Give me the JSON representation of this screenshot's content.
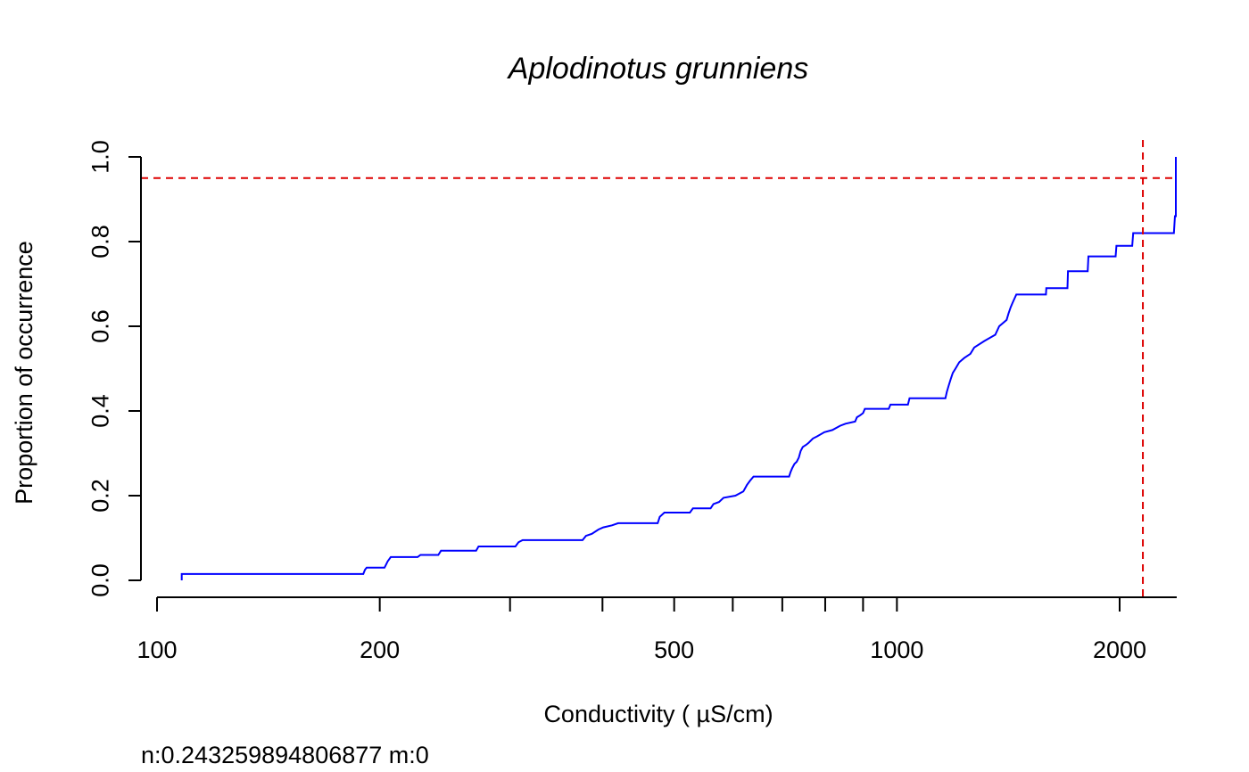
{
  "chart_data": {
    "type": "line",
    "title": "Aplodinotus grunniens",
    "xlabel": "Conductivity ( µS/cm)",
    "ylabel": "Proportion of occurrence",
    "x_scale": "log",
    "xlim": [
      96,
      2600
    ],
    "ylim": [
      -0.04,
      1.04
    ],
    "x_ticks": [
      100,
      200,
      300,
      400,
      500,
      600,
      700,
      800,
      900,
      1000,
      2000
    ],
    "x_tick_labels": [
      {
        "value": 100,
        "label": "100"
      },
      {
        "value": 200,
        "label": "200"
      },
      {
        "value": 500,
        "label": "500"
      },
      {
        "value": 1000,
        "label": "1000"
      },
      {
        "value": 2000,
        "label": "2000"
      }
    ],
    "y_ticks": [
      0.0,
      0.2,
      0.4,
      0.6,
      0.8,
      1.0
    ],
    "y_tick_labels": [
      "0.0",
      "0.2",
      "0.4",
      "0.6",
      "0.8",
      "1.0"
    ],
    "grid": false,
    "series": [
      {
        "color": "#0000ff",
        "step": true,
        "points": [
          [
            108,
            0.0
          ],
          [
            108,
            0.015
          ],
          [
            190,
            0.015
          ],
          [
            191,
            0.025
          ],
          [
            192,
            0.03
          ],
          [
            203,
            0.03
          ],
          [
            205,
            0.045
          ],
          [
            207,
            0.055
          ],
          [
            225,
            0.055
          ],
          [
            227,
            0.06
          ],
          [
            240,
            0.06
          ],
          [
            242,
            0.07
          ],
          [
            270,
            0.07
          ],
          [
            272,
            0.08
          ],
          [
            305,
            0.08
          ],
          [
            308,
            0.09
          ],
          [
            312,
            0.095
          ],
          [
            376,
            0.095
          ],
          [
            380,
            0.105
          ],
          [
            387,
            0.11
          ],
          [
            395,
            0.12
          ],
          [
            401,
            0.125
          ],
          [
            412,
            0.13
          ],
          [
            420,
            0.135
          ],
          [
            475,
            0.135
          ],
          [
            478,
            0.15
          ],
          [
            485,
            0.16
          ],
          [
            525,
            0.16
          ],
          [
            530,
            0.17
          ],
          [
            560,
            0.17
          ],
          [
            565,
            0.18
          ],
          [
            575,
            0.185
          ],
          [
            583,
            0.195
          ],
          [
            605,
            0.2
          ],
          [
            620,
            0.21
          ],
          [
            627,
            0.225
          ],
          [
            633,
            0.235
          ],
          [
            640,
            0.245
          ],
          [
            715,
            0.245
          ],
          [
            718,
            0.255
          ],
          [
            722,
            0.265
          ],
          [
            727,
            0.275
          ],
          [
            732,
            0.28
          ],
          [
            737,
            0.29
          ],
          [
            741,
            0.305
          ],
          [
            746,
            0.315
          ],
          [
            754,
            0.32
          ],
          [
            760,
            0.325
          ],
          [
            770,
            0.335
          ],
          [
            780,
            0.34
          ],
          [
            798,
            0.35
          ],
          [
            818,
            0.355
          ],
          [
            838,
            0.365
          ],
          [
            852,
            0.37
          ],
          [
            878,
            0.375
          ],
          [
            883,
            0.385
          ],
          [
            892,
            0.39
          ],
          [
            900,
            0.395
          ],
          [
            905,
            0.405
          ],
          [
            975,
            0.405
          ],
          [
            980,
            0.415
          ],
          [
            1035,
            0.415
          ],
          [
            1040,
            0.43
          ],
          [
            1163,
            0.43
          ],
          [
            1168,
            0.445
          ],
          [
            1175,
            0.46
          ],
          [
            1182,
            0.475
          ],
          [
            1190,
            0.49
          ],
          [
            1200,
            0.5
          ],
          [
            1214,
            0.515
          ],
          [
            1233,
            0.525
          ],
          [
            1257,
            0.535
          ],
          [
            1272,
            0.55
          ],
          [
            1312,
            0.565
          ],
          [
            1358,
            0.58
          ],
          [
            1375,
            0.6
          ],
          [
            1407,
            0.615
          ],
          [
            1415,
            0.63
          ],
          [
            1425,
            0.645
          ],
          [
            1433,
            0.655
          ],
          [
            1450,
            0.675
          ],
          [
            1590,
            0.675
          ],
          [
            1592,
            0.69
          ],
          [
            1700,
            0.69
          ],
          [
            1703,
            0.73
          ],
          [
            1811,
            0.73
          ],
          [
            1815,
            0.765
          ],
          [
            1975,
            0.765
          ],
          [
            1980,
            0.79
          ],
          [
            2080,
            0.79
          ],
          [
            2086,
            0.82
          ],
          [
            2368,
            0.82
          ],
          [
            2376,
            0.86
          ],
          [
            2621,
            0.86
          ],
          [
            2634,
            0.9
          ],
          [
            2706,
            0.9
          ],
          [
            2710,
            0.95
          ],
          [
            2724,
            0.95
          ],
          [
            2730,
            1.0
          ]
        ]
      }
    ],
    "reference_lines": [
      {
        "orientation": "horizontal",
        "value": 0.95,
        "color": "#dd0000",
        "style": "dashed"
      },
      {
        "orientation": "vertical",
        "value": 2150,
        "color": "#dd0000",
        "style": "dashed"
      }
    ]
  },
  "footnote": "n:0.243259894806877 m:0"
}
